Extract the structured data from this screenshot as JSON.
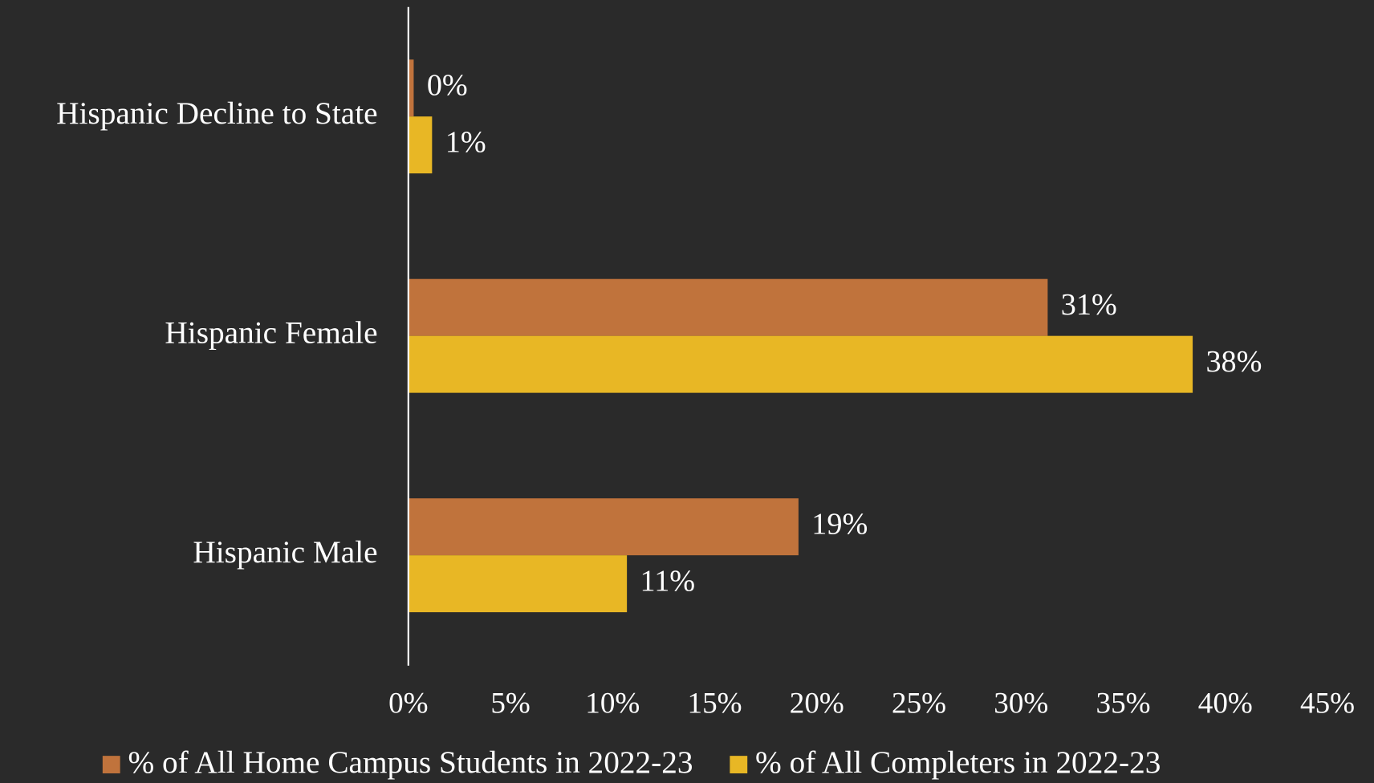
{
  "chart_data": {
    "type": "hbar",
    "categories": [
      "Hispanic Decline to State",
      "Hispanic Female",
      "Hispanic Male"
    ],
    "series": [
      {
        "name": "% of All Home Campus Students in 2022-23",
        "color": "#c0733c",
        "values": [
          0.26,
          31.3,
          19.1
        ],
        "value_labels": [
          "0%",
          "31%",
          "19%"
        ]
      },
      {
        "name": "% of All Completers in 2022-23",
        "color": "#e8b725",
        "values": [
          1.16,
          38.4,
          10.7
        ],
        "value_labels": [
          "1%",
          "38%",
          "11%"
        ]
      }
    ],
    "xlim": [
      0,
      45
    ],
    "xticks": [
      {
        "value": 0,
        "label": "0%"
      },
      {
        "value": 5,
        "label": "5%"
      },
      {
        "value": 10,
        "label": "10%"
      },
      {
        "value": 15,
        "label": "15%"
      },
      {
        "value": 20,
        "label": "20%"
      },
      {
        "value": 25,
        "label": "25%"
      },
      {
        "value": 30,
        "label": "30%"
      },
      {
        "value": 35,
        "label": "35%"
      },
      {
        "value": 40,
        "label": "40%"
      },
      {
        "value": 45,
        "label": "45%"
      }
    ],
    "legend": "bottom"
  }
}
